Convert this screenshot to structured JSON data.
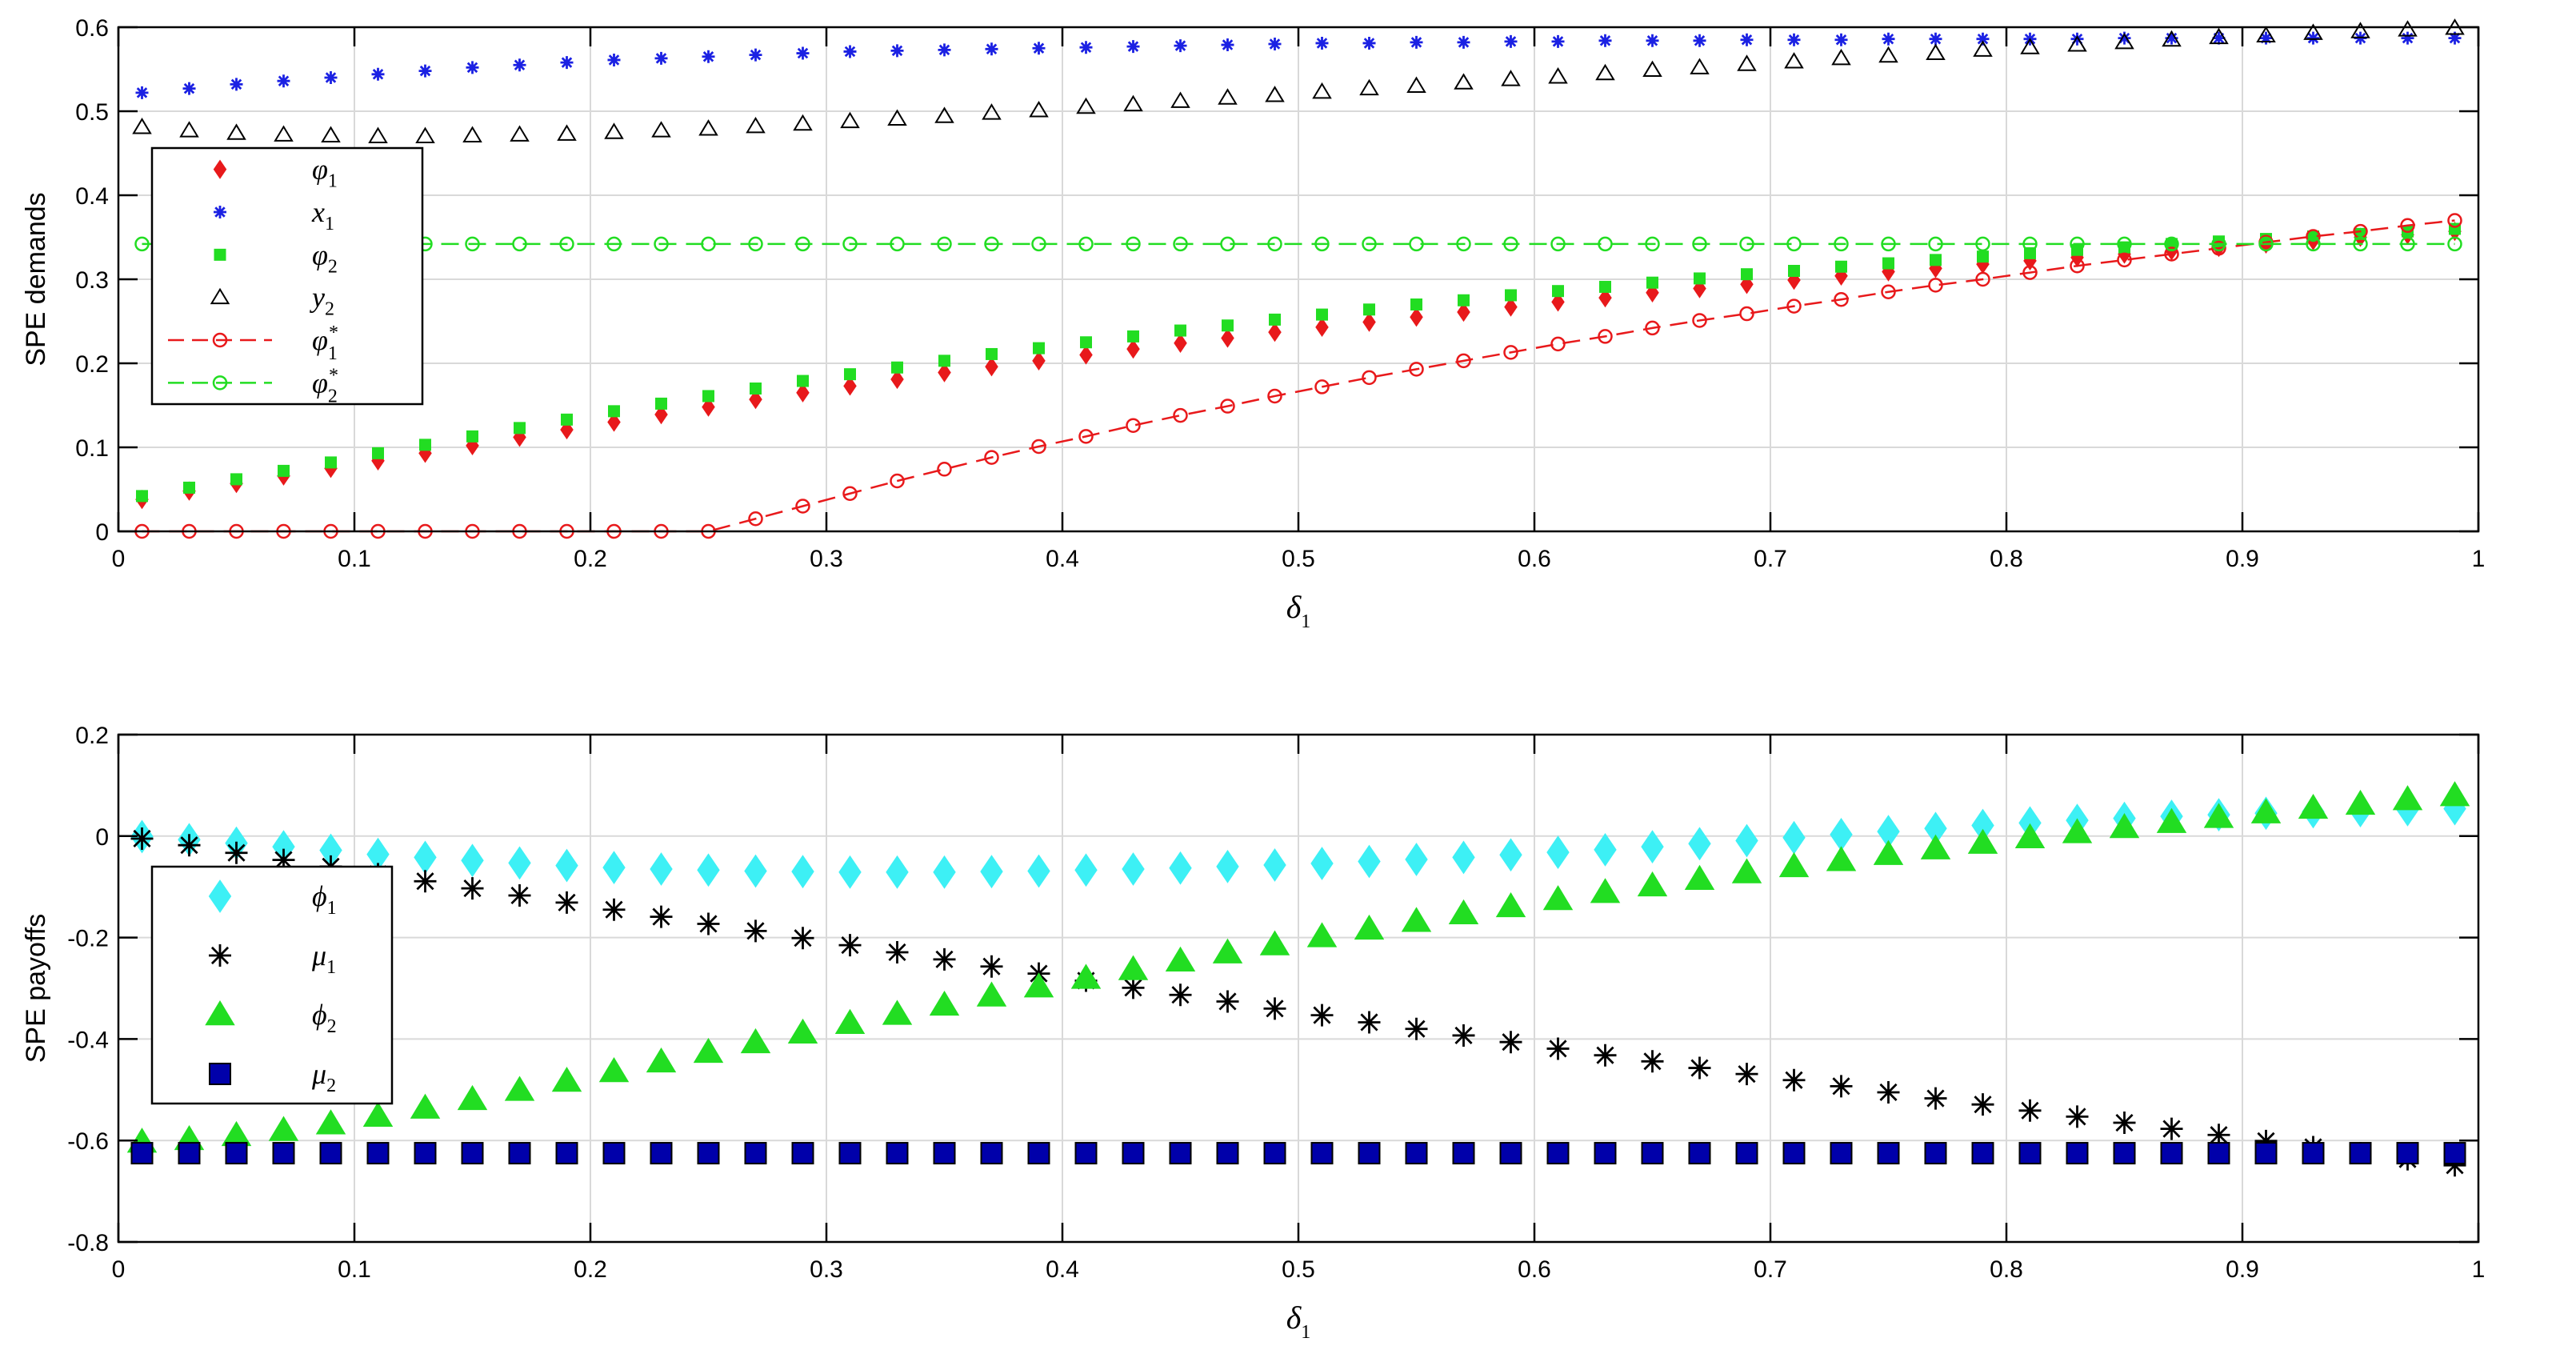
{
  "colors": {
    "red": "#e8191b",
    "blue": "#1b21e3",
    "green": "#22dd22",
    "black": "#000000",
    "cyan": "#3df0f5",
    "navy": "#0000aa",
    "grid": "#d9d9d9"
  },
  "chart_data": [
    {
      "type": "scatter",
      "ylabel": "SPE demands",
      "xlabel": "δ",
      "xlabel_sub": "1",
      "xlim": [
        0,
        1
      ],
      "ylim": [
        0,
        0.6
      ],
      "grid": true,
      "legend_position": "left, upper middle",
      "xticks": [
        "0",
        "0.1",
        "0.2",
        "0.3",
        "0.4",
        "0.5",
        "0.6",
        "0.7",
        "0.8",
        "0.9",
        "1"
      ],
      "yticks": [
        "0",
        "0.1",
        "0.2",
        "0.3",
        "0.4",
        "0.5",
        "0.6"
      ],
      "x": [
        0.01,
        0.03,
        0.05,
        0.07,
        0.09,
        0.11,
        0.13,
        0.15,
        0.17,
        0.19,
        0.21,
        0.23,
        0.25,
        0.27,
        0.29,
        0.31,
        0.33,
        0.35,
        0.37,
        0.39,
        0.41,
        0.43,
        0.45,
        0.47,
        0.49,
        0.51,
        0.53,
        0.55,
        0.57,
        0.59,
        0.61,
        0.63,
        0.65,
        0.67,
        0.69,
        0.71,
        0.73,
        0.75,
        0.77,
        0.79,
        0.81,
        0.83,
        0.85,
        0.87,
        0.89,
        0.91,
        0.93,
        0.95,
        0.97,
        0.99
      ],
      "series": [
        {
          "name": "φ",
          "sub": "1",
          "sup": "",
          "marker": "diamond",
          "color": "red",
          "line": false,
          "values": [
            0.038,
            0.048,
            0.057,
            0.066,
            0.075,
            0.084,
            0.093,
            0.102,
            0.112,
            0.121,
            0.13,
            0.139,
            0.148,
            0.157,
            0.165,
            0.173,
            0.181,
            0.189,
            0.196,
            0.203,
            0.21,
            0.217,
            0.224,
            0.23,
            0.237,
            0.243,
            0.249,
            0.255,
            0.261,
            0.267,
            0.273,
            0.278,
            0.284,
            0.289,
            0.294,
            0.299,
            0.304,
            0.309,
            0.313,
            0.318,
            0.322,
            0.326,
            0.33,
            0.334,
            0.338,
            0.342,
            0.346,
            0.35,
            0.353,
            0.357
          ]
        },
        {
          "name": "x",
          "sub": "1",
          "sup": "",
          "marker": "asterisk",
          "color": "blue",
          "line": false,
          "values": [
            0.522,
            0.527,
            0.532,
            0.536,
            0.54,
            0.544,
            0.548,
            0.552,
            0.555,
            0.558,
            0.561,
            0.563,
            0.565,
            0.567,
            0.569,
            0.571,
            0.572,
            0.573,
            0.574,
            0.575,
            0.576,
            0.577,
            0.578,
            0.579,
            0.58,
            0.581,
            0.581,
            0.582,
            0.582,
            0.583,
            0.583,
            0.584,
            0.584,
            0.584,
            0.585,
            0.585,
            0.585,
            0.586,
            0.586,
            0.586,
            0.586,
            0.586,
            0.587,
            0.587,
            0.587,
            0.587,
            0.587,
            0.587,
            0.587,
            0.587
          ]
        },
        {
          "name": "φ",
          "sub": "2",
          "sup": "",
          "marker": "square",
          "color": "green",
          "line": false,
          "values": [
            0.042,
            0.052,
            0.062,
            0.072,
            0.082,
            0.093,
            0.103,
            0.113,
            0.123,
            0.133,
            0.143,
            0.152,
            0.161,
            0.17,
            0.179,
            0.187,
            0.195,
            0.203,
            0.211,
            0.218,
            0.225,
            0.232,
            0.239,
            0.245,
            0.252,
            0.258,
            0.264,
            0.27,
            0.275,
            0.281,
            0.286,
            0.291,
            0.296,
            0.301,
            0.306,
            0.31,
            0.315,
            0.319,
            0.323,
            0.327,
            0.331,
            0.335,
            0.338,
            0.342,
            0.345,
            0.348,
            0.351,
            0.354,
            0.357,
            0.36
          ]
        },
        {
          "name": "y",
          "sub": "2",
          "sup": "",
          "marker": "triangle",
          "color": "black",
          "line": false,
          "values": [
            0.481,
            0.477,
            0.474,
            0.472,
            0.471,
            0.47,
            0.47,
            0.471,
            0.472,
            0.473,
            0.475,
            0.477,
            0.479,
            0.482,
            0.485,
            0.488,
            0.491,
            0.494,
            0.498,
            0.501,
            0.505,
            0.508,
            0.512,
            0.516,
            0.519,
            0.523,
            0.527,
            0.53,
            0.534,
            0.538,
            0.541,
            0.545,
            0.549,
            0.552,
            0.556,
            0.559,
            0.563,
            0.566,
            0.569,
            0.573,
            0.576,
            0.579,
            0.582,
            0.585,
            0.588,
            0.59,
            0.593,
            0.595,
            0.597,
            0.599
          ]
        },
        {
          "name": "φ",
          "sub": "1",
          "sup": "*",
          "marker": "circle",
          "color": "red",
          "line": true,
          "values": [
            0,
            0,
            0,
            0,
            0,
            0,
            0,
            0,
            0,
            0,
            0,
            0,
            0,
            0.015,
            0.03,
            0.045,
            0.06,
            0.074,
            0.088,
            0.101,
            0.113,
            0.126,
            0.138,
            0.149,
            0.161,
            0.172,
            0.183,
            0.193,
            0.203,
            0.213,
            0.223,
            0.232,
            0.242,
            0.251,
            0.259,
            0.268,
            0.276,
            0.285,
            0.293,
            0.3,
            0.308,
            0.316,
            0.323,
            0.33,
            0.337,
            0.344,
            0.351,
            0.357,
            0.364,
            0.37
          ]
        },
        {
          "name": "φ",
          "sub": "2",
          "sup": "*",
          "marker": "circle",
          "color": "green",
          "line": true,
          "values": [
            0.342,
            0.342,
            0.342,
            0.342,
            0.342,
            0.342,
            0.342,
            0.342,
            0.342,
            0.342,
            0.342,
            0.342,
            0.342,
            0.342,
            0.342,
            0.342,
            0.342,
            0.342,
            0.342,
            0.342,
            0.342,
            0.342,
            0.342,
            0.342,
            0.342,
            0.342,
            0.342,
            0.342,
            0.342,
            0.342,
            0.342,
            0.342,
            0.342,
            0.342,
            0.342,
            0.342,
            0.342,
            0.342,
            0.342,
            0.342,
            0.342,
            0.342,
            0.342,
            0.342,
            0.342,
            0.342,
            0.342,
            0.342,
            0.342,
            0.342
          ]
        }
      ]
    },
    {
      "type": "scatter",
      "ylabel": "SPE payoffs",
      "xlabel": "δ",
      "xlabel_sub": "1",
      "xlim": [
        0,
        1
      ],
      "ylim": [
        -0.8,
        0.2
      ],
      "grid": true,
      "legend_position": "left, middle",
      "xticks": [
        "0",
        "0.1",
        "0.2",
        "0.3",
        "0.4",
        "0.5",
        "0.6",
        "0.7",
        "0.8",
        "0.9",
        "1"
      ],
      "yticks": [
        "-0.8",
        "-0.6",
        "-0.4",
        "-0.2",
        "0",
        "0.2"
      ],
      "x": [
        0.01,
        0.03,
        0.05,
        0.07,
        0.09,
        0.11,
        0.13,
        0.15,
        0.17,
        0.19,
        0.21,
        0.23,
        0.25,
        0.27,
        0.29,
        0.31,
        0.33,
        0.35,
        0.37,
        0.39,
        0.41,
        0.43,
        0.45,
        0.47,
        0.49,
        0.51,
        0.53,
        0.55,
        0.57,
        0.59,
        0.61,
        0.63,
        0.65,
        0.67,
        0.69,
        0.71,
        0.73,
        0.75,
        0.77,
        0.79,
        0.81,
        0.83,
        0.85,
        0.87,
        0.89,
        0.91,
        0.93,
        0.95,
        0.97,
        0.99
      ],
      "series": [
        {
          "name": "ϕ",
          "sub": "1",
          "sup": "",
          "marker": "diamond",
          "color": "cyan",
          "line": false,
          "values": [
            -0.001,
            -0.007,
            -0.014,
            -0.021,
            -0.028,
            -0.036,
            -0.042,
            -0.048,
            -0.053,
            -0.058,
            -0.062,
            -0.065,
            -0.067,
            -0.069,
            -0.07,
            -0.071,
            -0.071,
            -0.071,
            -0.07,
            -0.069,
            -0.067,
            -0.065,
            -0.063,
            -0.06,
            -0.057,
            -0.054,
            -0.05,
            -0.046,
            -0.042,
            -0.037,
            -0.032,
            -0.027,
            -0.021,
            -0.015,
            -0.009,
            -0.003,
            0.003,
            0.009,
            0.015,
            0.021,
            0.026,
            0.031,
            0.035,
            0.039,
            0.042,
            0.045,
            0.048,
            0.05,
            0.052,
            0.054
          ]
        },
        {
          "name": "μ",
          "sub": "1",
          "sup": "",
          "marker": "asterisk",
          "color": "black",
          "line": false,
          "values": [
            -0.005,
            -0.018,
            -0.033,
            -0.047,
            -0.06,
            -0.075,
            -0.089,
            -0.103,
            -0.117,
            -0.131,
            -0.145,
            -0.159,
            -0.173,
            -0.187,
            -0.201,
            -0.215,
            -0.229,
            -0.243,
            -0.257,
            -0.271,
            -0.285,
            -0.299,
            -0.313,
            -0.326,
            -0.34,
            -0.353,
            -0.367,
            -0.38,
            -0.393,
            -0.406,
            -0.419,
            -0.432,
            -0.444,
            -0.457,
            -0.469,
            -0.481,
            -0.493,
            -0.505,
            -0.517,
            -0.529,
            -0.541,
            -0.553,
            -0.565,
            -0.577,
            -0.589,
            -0.601,
            -0.613,
            -0.625,
            -0.637,
            -0.649
          ]
        },
        {
          "name": "ϕ",
          "sub": "2",
          "sup": "",
          "marker": "triangle",
          "color": "green",
          "line": false,
          "values": [
            -0.603,
            -0.598,
            -0.59,
            -0.58,
            -0.567,
            -0.552,
            -0.536,
            -0.519,
            -0.501,
            -0.483,
            -0.464,
            -0.445,
            -0.426,
            -0.407,
            -0.388,
            -0.369,
            -0.351,
            -0.333,
            -0.315,
            -0.297,
            -0.28,
            -0.263,
            -0.246,
            -0.23,
            -0.214,
            -0.198,
            -0.183,
            -0.168,
            -0.153,
            -0.139,
            -0.125,
            -0.111,
            -0.098,
            -0.085,
            -0.072,
            -0.06,
            -0.048,
            -0.036,
            -0.025,
            -0.014,
            -0.003,
            0.007,
            0.017,
            0.027,
            0.037,
            0.046,
            0.055,
            0.063,
            0.072,
            0.08
          ]
        },
        {
          "name": "μ",
          "sub": "2",
          "sup": "",
          "marker": "square",
          "color": "navy",
          "line": false,
          "values": [
            -0.625,
            -0.625,
            -0.625,
            -0.625,
            -0.625,
            -0.625,
            -0.625,
            -0.625,
            -0.625,
            -0.625,
            -0.625,
            -0.625,
            -0.625,
            -0.625,
            -0.625,
            -0.625,
            -0.625,
            -0.625,
            -0.625,
            -0.625,
            -0.625,
            -0.625,
            -0.625,
            -0.625,
            -0.625,
            -0.625,
            -0.625,
            -0.625,
            -0.625,
            -0.625,
            -0.625,
            -0.625,
            -0.625,
            -0.625,
            -0.625,
            -0.625,
            -0.625,
            -0.625,
            -0.625,
            -0.625,
            -0.625,
            -0.625,
            -0.625,
            -0.625,
            -0.625,
            -0.625,
            -0.625,
            -0.625,
            -0.625,
            -0.625
          ]
        }
      ]
    }
  ]
}
